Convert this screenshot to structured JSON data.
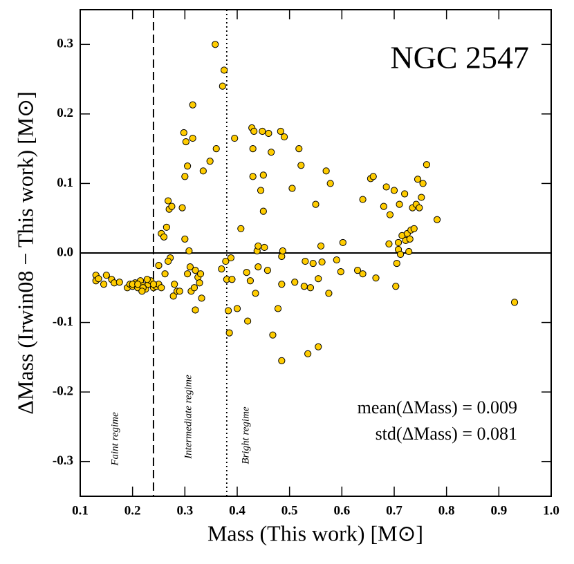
{
  "chart_data": {
    "type": "scatter",
    "title": "NGC 2547",
    "xlabel": "Mass (This work) [M⊙]",
    "ylabel": "ΔMass (Irwin08 − This work) [M⊙]",
    "annotations": [
      "mean(ΔMass) = 0.009",
      "std(ΔMass) = 0.081"
    ],
    "regimes": [
      {
        "label": "Faint regime",
        "x": 0.17
      },
      {
        "label": "Intermediate regime",
        "x": 0.31
      },
      {
        "label": "Bright regime",
        "x": 0.42
      }
    ],
    "vlines": [
      {
        "x": 0.24,
        "style": "dashed"
      },
      {
        "x": 0.38,
        "style": "dotted"
      }
    ],
    "hline": 0,
    "color": "#ffcc00",
    "xlim": [
      0.1,
      1.0
    ],
    "ylim": [
      -0.35,
      0.35
    ],
    "xticks": [
      0.1,
      0.2,
      0.3,
      0.4,
      0.5,
      0.6,
      0.7,
      0.8,
      0.9,
      {
        "value": 1.0,
        "label": "1.0"
      }
    ],
    "yticks": [
      -0.3,
      -0.2,
      -0.1,
      {
        "value": 0,
        "label": "0.0"
      },
      0.1,
      0.2,
      0.3
    ],
    "points": {
      "x": [
        0.13,
        0.13,
        0.135,
        0.145,
        0.15,
        0.16,
        0.165,
        0.175,
        0.19,
        0.195,
        0.2,
        0.205,
        0.21,
        0.215,
        0.22,
        0.225,
        0.23,
        0.235,
        0.24,
        0.245,
        0.25,
        0.255,
        0.2,
        0.21,
        0.22,
        0.228,
        0.218,
        0.24,
        0.25,
        0.255,
        0.26,
        0.262,
        0.265,
        0.268,
        0.27,
        0.272,
        0.275,
        0.268,
        0.278,
        0.28,
        0.285,
        0.29,
        0.295,
        0.298,
        0.3,
        0.3,
        0.302,
        0.305,
        0.305,
        0.308,
        0.31,
        0.312,
        0.315,
        0.315,
        0.318,
        0.32,
        0.32,
        0.325,
        0.328,
        0.33,
        0.332,
        0.335,
        0.348,
        0.358,
        0.36,
        0.372,
        0.375,
        0.37,
        0.378,
        0.38,
        0.383,
        0.385,
        0.388,
        0.39,
        0.395,
        0.4,
        0.407,
        0.418,
        0.42,
        0.425,
        0.428,
        0.43,
        0.43,
        0.432,
        0.435,
        0.438,
        0.44,
        0.44,
        0.445,
        0.448,
        0.45,
        0.45,
        0.452,
        0.458,
        0.46,
        0.465,
        0.468,
        0.478,
        0.483,
        0.485,
        0.485,
        0.485,
        0.487,
        0.49,
        0.505,
        0.51,
        0.518,
        0.522,
        0.528,
        0.53,
        0.535,
        0.54,
        0.545,
        0.55,
        0.555,
        0.555,
        0.56,
        0.562,
        0.57,
        0.575,
        0.578,
        0.59,
        0.598,
        0.602,
        0.63,
        0.64,
        0.64,
        0.655,
        0.66,
        0.665,
        0.68,
        0.685,
        0.69,
        0.692,
        0.7,
        0.703,
        0.705,
        0.708,
        0.708,
        0.71,
        0.712,
        0.715,
        0.72,
        0.722,
        0.725,
        0.728,
        0.73,
        0.732,
        0.735,
        0.738,
        0.742,
        0.745,
        0.748,
        0.752,
        0.755,
        0.762,
        0.782,
        0.93
      ],
      "y": [
        -0.032,
        -0.04,
        -0.037,
        -0.045,
        -0.032,
        -0.038,
        -0.043,
        -0.042,
        -0.05,
        -0.045,
        -0.048,
        -0.043,
        -0.05,
        -0.04,
        -0.047,
        -0.052,
        -0.045,
        -0.04,
        -0.05,
        -0.048,
        -0.045,
        -0.05,
        -0.045,
        -0.045,
        -0.05,
        -0.038,
        -0.055,
        -0.045,
        -0.018,
        0.028,
        0.023,
        -0.03,
        0.037,
        0.075,
        0.063,
        -0.007,
        0.067,
        -0.012,
        -0.062,
        -0.045,
        -0.055,
        -0.055,
        0.065,
        0.173,
        0.11,
        0.02,
        0.16,
        0.125,
        -0.03,
        0.003,
        -0.02,
        -0.055,
        0.165,
        0.213,
        -0.05,
        -0.082,
        -0.025,
        -0.035,
        -0.043,
        -0.03,
        -0.065,
        0.118,
        0.132,
        0.3,
        0.15,
        0.24,
        0.263,
        -0.023,
        -0.012,
        -0.038,
        -0.083,
        -0.115,
        -0.007,
        -0.038,
        0.165,
        -0.08,
        0.035,
        -0.028,
        -0.098,
        -0.04,
        0.18,
        0.15,
        0.11,
        0.175,
        -0.058,
        0.003,
        0.01,
        -0.02,
        0.09,
        0.175,
        0.112,
        0.06,
        0.008,
        -0.025,
        0.172,
        0.145,
        -0.118,
        -0.08,
        0.175,
        -0.005,
        -0.155,
        -0.045,
        0.003,
        0.167,
        0.093,
        -0.042,
        0.15,
        0.126,
        -0.048,
        -0.012,
        -0.145,
        -0.05,
        -0.015,
        0.07,
        -0.037,
        -0.135,
        0.01,
        -0.013,
        0.118,
        -0.058,
        0.1,
        -0.01,
        -0.027,
        0.015,
        -0.025,
        -0.03,
        0.077,
        0.107,
        0.11,
        -0.036,
        0.067,
        0.095,
        0.013,
        0.055,
        0.09,
        -0.048,
        -0.015,
        0.005,
        0.015,
        0.07,
        -0.002,
        0.025,
        0.085,
        0.018,
        0.028,
        0.002,
        0.02,
        0.033,
        0.065,
        0.035,
        0.07,
        0.106,
        0.065,
        0.08,
        0.1,
        0.127,
        0.048,
        -0.071
      ]
    }
  }
}
